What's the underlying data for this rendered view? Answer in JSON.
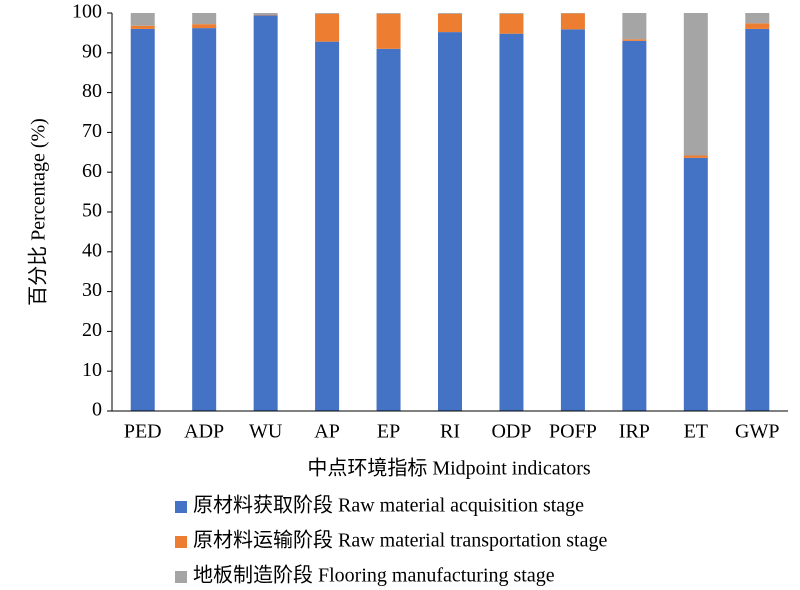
{
  "chart_data": {
    "type": "stacked_bar",
    "y_label": "百分比 Percentage (%)",
    "x_label": "中点环境指标 Midpoint indicators",
    "categories": [
      "PED",
      "ADP",
      "WU",
      "AP",
      "EP",
      "RI",
      "ODP",
      "POFP",
      "IRP",
      "ET",
      "GWP"
    ],
    "series": [
      {
        "name": "原材料获取阶段 Raw material acquisition stage",
        "color": "#4472c4",
        "values": [
          96.0,
          96.2,
          99.4,
          92.8,
          91.0,
          95.2,
          94.8,
          95.9,
          93.0,
          63.6,
          96.0
        ]
      },
      {
        "name": "原材料运输阶段 Raw material transportation stage",
        "color": "#ed7d31",
        "values": [
          0.8,
          1.0,
          0.1,
          7.0,
          8.8,
          4.6,
          5.0,
          4.0,
          0.4,
          0.6,
          1.4
        ]
      },
      {
        "name": "地板制造阶段 Flooring manufacturing stage",
        "color": "#a5a5a5",
        "values": [
          3.2,
          2.8,
          0.5,
          0.2,
          0.2,
          0.2,
          0.2,
          0.1,
          6.6,
          35.8,
          2.6
        ]
      }
    ],
    "ylim": [
      0,
      100
    ],
    "yticks": [
      0,
      10,
      20,
      30,
      40,
      50,
      60,
      70,
      80,
      90,
      100
    ],
    "grid": false,
    "legend": "bottom"
  }
}
